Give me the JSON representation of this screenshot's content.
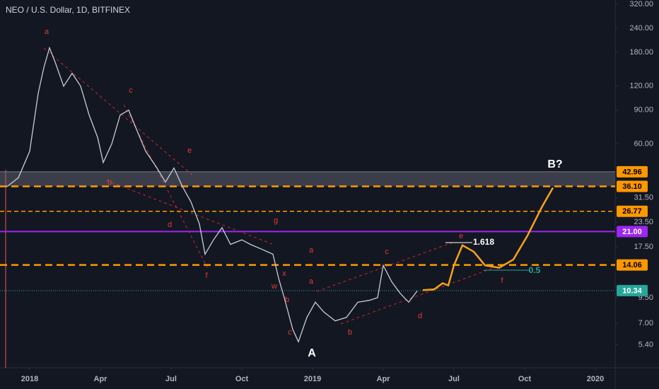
{
  "chart_data": {
    "type": "line",
    "title": "NEO / U.S. Dollar, 1D, BITFINEX",
    "log_scale": true,
    "xlim": [
      2017.895,
      2020.07
    ],
    "xticks": [
      {
        "value": 2018,
        "label": "2018"
      },
      {
        "value": 2018.25,
        "label": "Apr"
      },
      {
        "value": 2018.5,
        "label": "Jul"
      },
      {
        "value": 2018.75,
        "label": "Oct"
      },
      {
        "value": 2019,
        "label": "2019"
      },
      {
        "value": 2019.25,
        "label": "Apr"
      },
      {
        "value": 2019.5,
        "label": "Jul"
      },
      {
        "value": 2019.75,
        "label": "Oct"
      },
      {
        "value": 2020,
        "label": "2020"
      }
    ],
    "ylim": [
      4.1,
      337
    ],
    "yticks": [
      {
        "value": 320,
        "label": "320.00"
      },
      {
        "value": 240,
        "label": "240.00"
      },
      {
        "value": 180,
        "label": "180.00"
      },
      {
        "value": 120,
        "label": "120.00"
      },
      {
        "value": 90,
        "label": "90.00"
      },
      {
        "value": 60,
        "label": "60.00"
      },
      {
        "value": 31.5,
        "label": "31.50"
      },
      {
        "value": 23.5,
        "label": "23.50"
      },
      {
        "value": 17.5,
        "label": "17.50"
      },
      {
        "value": 9.5,
        "label": "9.50"
      },
      {
        "value": 7,
        "label": "7.00"
      },
      {
        "value": 5.4,
        "label": "5.40"
      }
    ],
    "series": [
      {
        "color": "#c8ccd4",
        "x": [
          2017.92,
          2017.96,
          2018.0,
          2018.03,
          2018.05,
          2018.07,
          2018.09,
          2018.12,
          2018.15,
          2018.18,
          2018.21,
          2018.24,
          2018.26,
          2018.29,
          2018.32,
          2018.35,
          2018.38,
          2018.41,
          2018.45,
          2018.48,
          2018.51,
          2018.54,
          2018.57,
          2018.6,
          2018.62,
          2018.65,
          2018.68,
          2018.71,
          2018.75,
          2018.78,
          2018.82,
          2018.86,
          2018.88,
          2018.9,
          2018.93,
          2018.95,
          2018.98,
          2019.01,
          2019.04,
          2019.08,
          2019.12,
          2019.16,
          2019.2,
          2019.23,
          2019.25,
          2019.28,
          2019.31,
          2019.34,
          2019.37
        ],
        "values": [
          36,
          40,
          55,
          110,
          150,
          190,
          160,
          120,
          140,
          120,
          85,
          65,
          48,
          60,
          85,
          90,
          70,
          55,
          45,
          38,
          45,
          36,
          30,
          23,
          16,
          19,
          22,
          18,
          19,
          18,
          17,
          16,
          12,
          9.5,
          6.5,
          5.6,
          7.5,
          9,
          8,
          7.2,
          7.5,
          9,
          9.2,
          9.5,
          14,
          11.5,
          10,
          9,
          10.3
        ]
      },
      {
        "color": "#f7a21b",
        "x": [
          2019.39,
          2019.43,
          2019.46,
          2019.48,
          2019.5,
          2019.53,
          2019.57,
          2019.61,
          2019.66,
          2019.71,
          2019.76,
          2019.81,
          2019.85
        ],
        "values": [
          10.4,
          10.5,
          11.3,
          11,
          14,
          17.8,
          16.5,
          14,
          13.6,
          15,
          20,
          28,
          35.5
        ]
      }
    ],
    "levels": [
      {
        "value": 42.96,
        "label": "42.96",
        "color": "#ff9800",
        "style": "band"
      },
      {
        "value": 36.1,
        "label": "36.10",
        "color": "#ff9800",
        "style": "dashed"
      },
      {
        "value": 26.77,
        "label": "26.77",
        "color": "#ff9800",
        "style": "dashed-thin"
      },
      {
        "value": 21,
        "label": "21.00",
        "color": "#9c27f0",
        "style": "solid"
      },
      {
        "value": 14.06,
        "label": "14.06",
        "color": "#ff9800",
        "style": "dashed"
      },
      {
        "value": 10.34,
        "label": "10.34",
        "color": "#26a69a",
        "style": "dotted"
      }
    ],
    "annotations": [
      {
        "text": "a",
        "color": "#e53935"
      },
      {
        "text": "c",
        "color": "#e53935"
      },
      {
        "text": "e",
        "color": "#e53935"
      },
      {
        "text": "b",
        "color": "#e53935"
      },
      {
        "text": "d",
        "color": "#e53935"
      },
      {
        "text": "f",
        "color": "#e53935"
      },
      {
        "text": "g",
        "color": "#e53935"
      },
      {
        "text": "a",
        "color": "#e53935"
      },
      {
        "text": "x",
        "color": "#e53935"
      },
      {
        "text": "w",
        "color": "#e53935"
      },
      {
        "text": "a",
        "color": "#e53935"
      },
      {
        "text": "b",
        "color": "#e53935"
      },
      {
        "text": "c",
        "color": "#e53935"
      },
      {
        "text": "b",
        "color": "#e53935"
      },
      {
        "text": "c",
        "color": "#e53935"
      },
      {
        "text": "d",
        "color": "#e53935"
      },
      {
        "text": "e",
        "color": "#e53935"
      },
      {
        "text": "f",
        "color": "#e53935"
      },
      {
        "text": "B?",
        "color": "#ffffff"
      },
      {
        "text": "A",
        "color": "#ffffff"
      },
      {
        "text": "1.618",
        "color": "#ffffff"
      },
      {
        "text": "0.5",
        "color": "#26a69a"
      }
    ]
  }
}
